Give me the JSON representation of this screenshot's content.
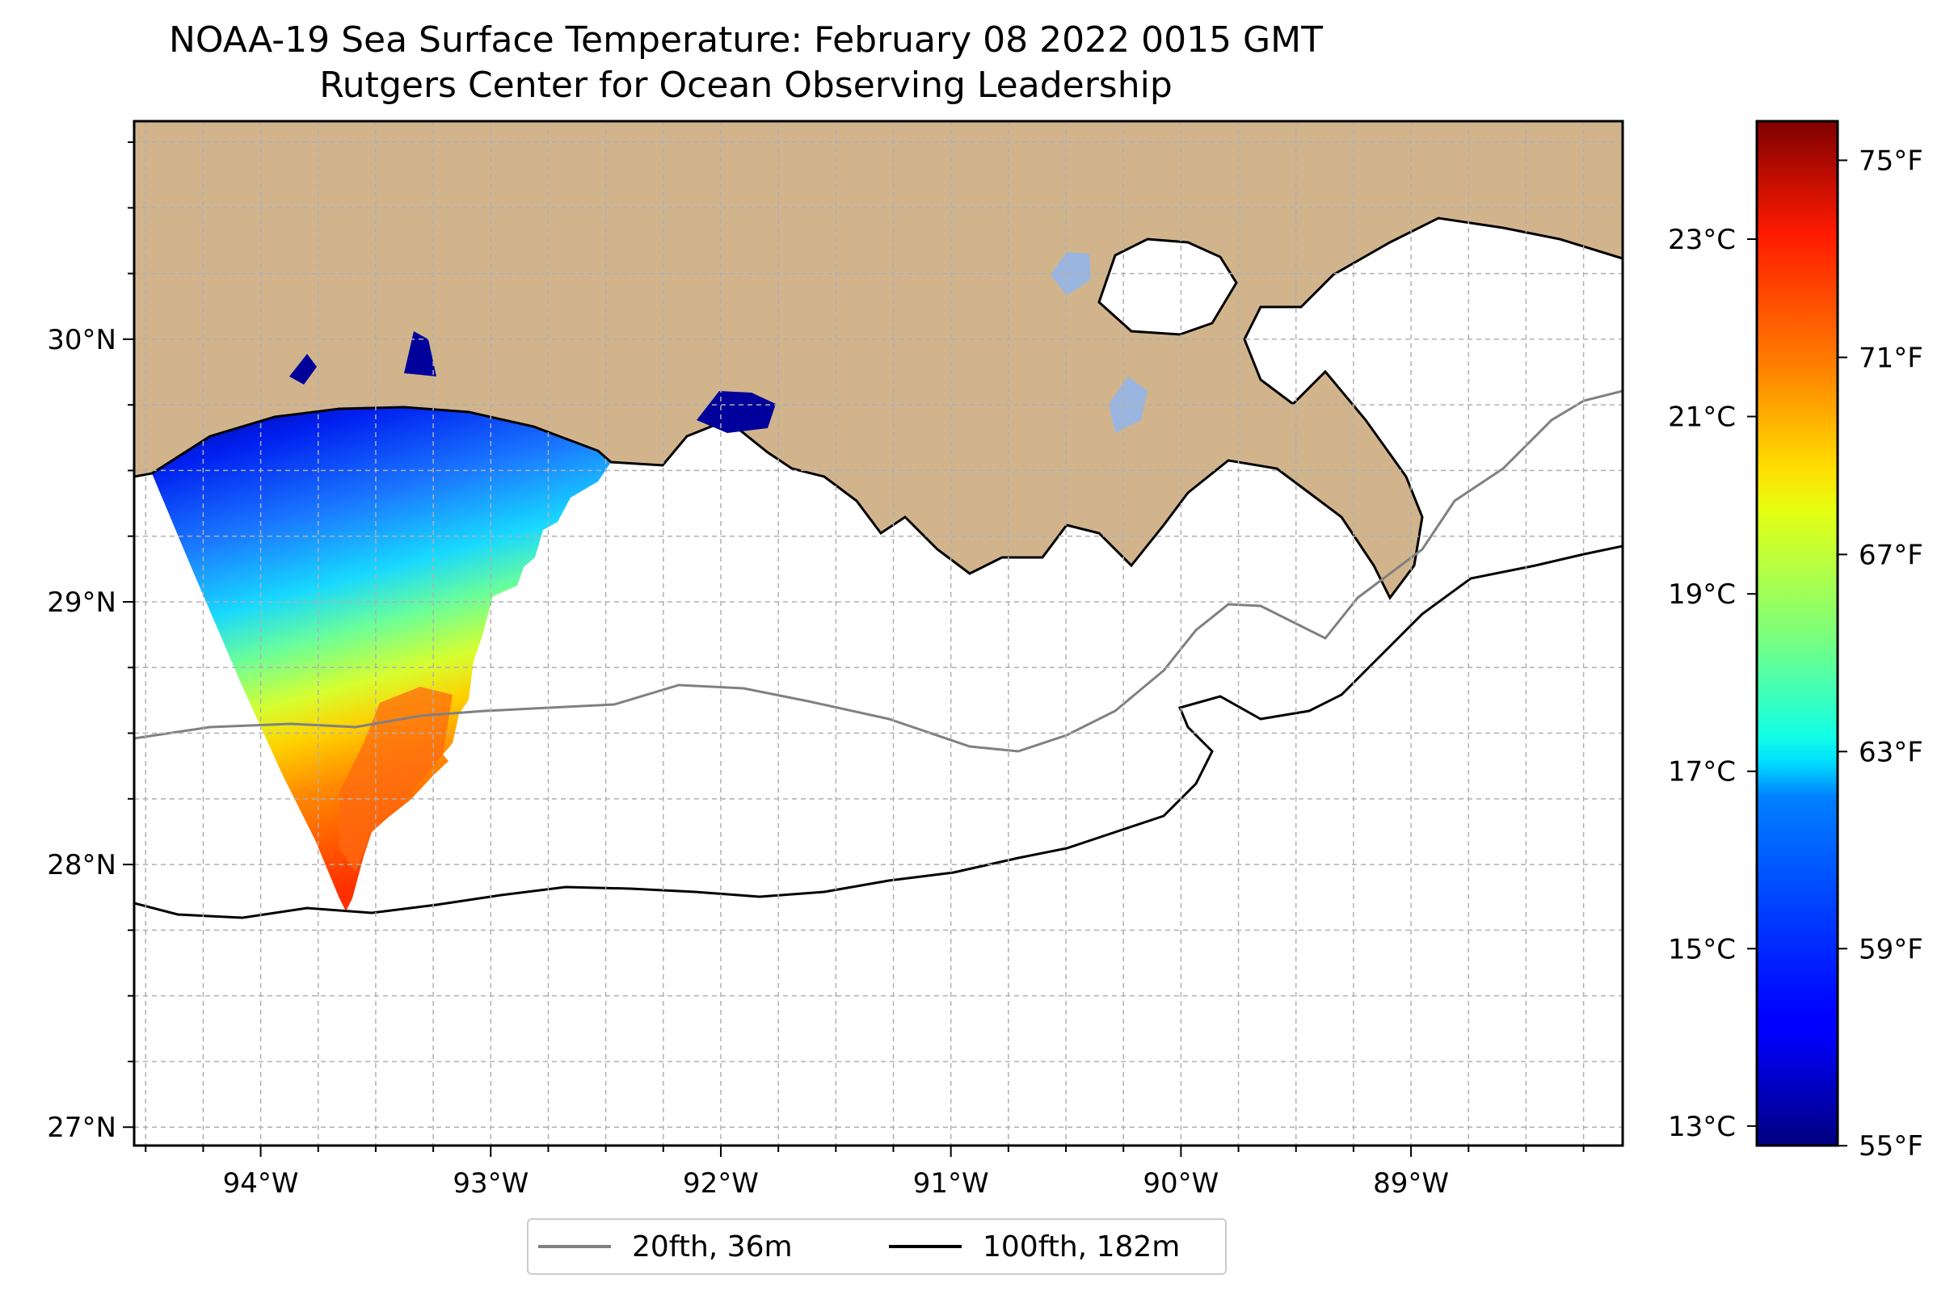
{
  "title": "NOAA-19 Sea Surface Temperature: February 08 2022 0015 GMT",
  "subtitle": "Rutgers Center for Ocean Observing Leadership",
  "colors": {
    "land": "#d2b48c",
    "inland_water": "#9ab5e0",
    "coast": "#000000",
    "isobath_20": "#808080",
    "isobath_100": "#000000",
    "grid": "#b0b0b0"
  },
  "map": {
    "lon_range": [
      -94.55,
      -88.08
    ],
    "lat_range": [
      26.93,
      30.83
    ],
    "lon_ticks": [
      {
        "value": -94,
        "label": "94°W"
      },
      {
        "value": -93,
        "label": "93°W"
      },
      {
        "value": -92,
        "label": "92°W"
      },
      {
        "value": -91,
        "label": "91°W"
      },
      {
        "value": -90,
        "label": "90°W"
      },
      {
        "value": -89,
        "label": "89°W"
      }
    ],
    "lat_ticks": [
      {
        "value": 30,
        "label": "30°N"
      },
      {
        "value": 29,
        "label": "29°N"
      },
      {
        "value": 28,
        "label": "28°N"
      },
      {
        "value": 27,
        "label": "27°N"
      }
    ],
    "grid": true
  },
  "colorbar": {
    "colormap": "jet",
    "range_c": [
      12.78,
      24.33
    ],
    "celsius_ticks": [
      {
        "value": 13,
        "label": "13°C"
      },
      {
        "value": 15,
        "label": "15°C"
      },
      {
        "value": 17,
        "label": "17°C"
      },
      {
        "value": 19,
        "label": "19°C"
      },
      {
        "value": 21,
        "label": "21°C"
      },
      {
        "value": 23,
        "label": "23°C"
      }
    ],
    "fahrenheit_ticks": [
      {
        "value": 55,
        "label": "55°F"
      },
      {
        "value": 59,
        "label": "59°F"
      },
      {
        "value": 63,
        "label": "63°F"
      },
      {
        "value": 67,
        "label": "67°F"
      },
      {
        "value": 71,
        "label": "71°F"
      },
      {
        "value": 75,
        "label": "75°F"
      }
    ]
  },
  "legend": {
    "items": [
      {
        "label": "20fth, 36m",
        "color": "#808080"
      },
      {
        "label": "100fth, 182m",
        "color": "#000000"
      }
    ]
  }
}
